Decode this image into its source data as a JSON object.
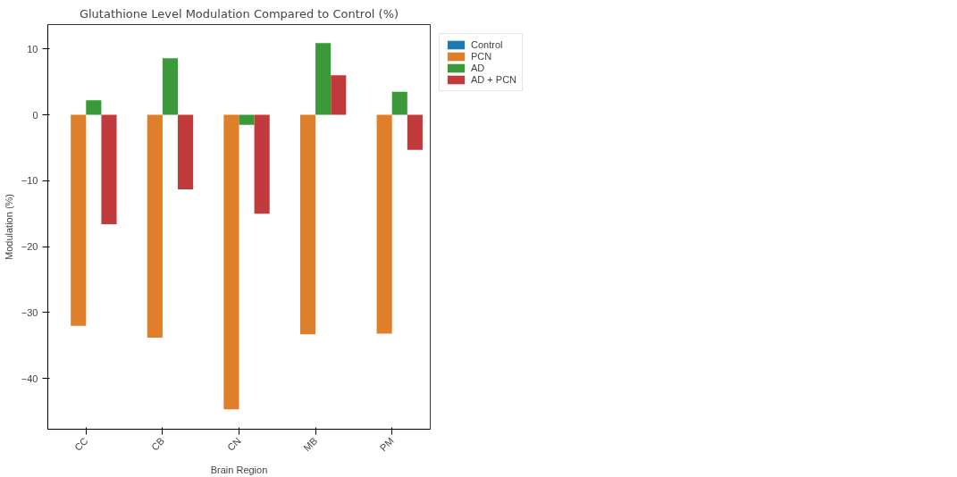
{
  "chart_data": {
    "type": "bar",
    "title": "Glutathione Level Modulation Compared to Control (%)",
    "xlabel": "Brain Region",
    "ylabel": "Modulation (%)",
    "categories": [
      "CC",
      "CB",
      "CN",
      "MB",
      "PM"
    ],
    "series": [
      {
        "name": "Control",
        "color": "#1f77b4",
        "values": [
          0,
          0,
          0,
          0,
          0
        ]
      },
      {
        "name": "PCN",
        "color": "#e07f2a",
        "values": [
          -32,
          -33.8,
          -44.7,
          -33.3,
          -33.2
        ]
      },
      {
        "name": "AD",
        "color": "#3a9a3a",
        "values": [
          2.2,
          8.6,
          -1.5,
          10.9,
          3.5
        ]
      },
      {
        "name": "AD + PCN",
        "color": "#c23b3c",
        "values": [
          -16.6,
          -11.3,
          -15.0,
          6.0,
          -5.3
        ]
      }
    ],
    "ylim": [
      -47.7,
      13.7
    ],
    "yticks": [
      -40,
      -30,
      -20,
      -10,
      0,
      10
    ],
    "grid": false,
    "legend": "top right"
  }
}
